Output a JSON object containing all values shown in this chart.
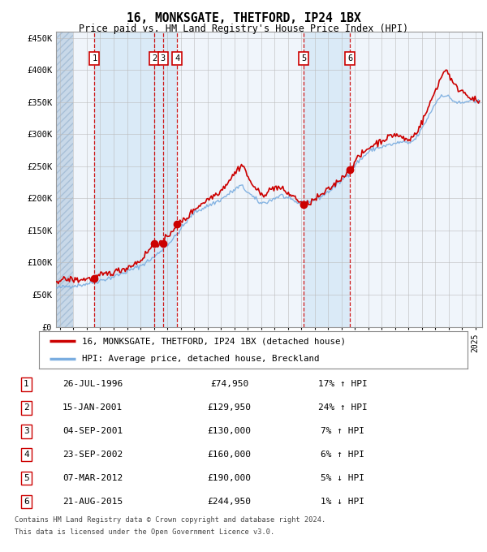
{
  "title": "16, MONKSGATE, THETFORD, IP24 1BX",
  "subtitle": "Price paid vs. HM Land Registry's House Price Index (HPI)",
  "ylabel_ticks": [
    "£0",
    "£50K",
    "£100K",
    "£150K",
    "£200K",
    "£250K",
    "£300K",
    "£350K",
    "£400K",
    "£450K"
  ],
  "ytick_vals": [
    0,
    50000,
    100000,
    150000,
    200000,
    250000,
    300000,
    350000,
    400000,
    450000
  ],
  "ylim": [
    0,
    460000
  ],
  "xlim_start": 1993.7,
  "xlim_end": 2025.5,
  "sales": [
    {
      "num": 1,
      "date_str": "26-JUL-1996",
      "date_x": 1996.57,
      "price": 74950,
      "pct": "17%",
      "dir": "↑"
    },
    {
      "num": 2,
      "date_str": "15-JAN-2001",
      "date_x": 2001.04,
      "price": 129950,
      "pct": "24%",
      "dir": "↑"
    },
    {
      "num": 3,
      "date_str": "04-SEP-2001",
      "date_x": 2001.67,
      "price": 130000,
      "pct": "7%",
      "dir": "↑"
    },
    {
      "num": 4,
      "date_str": "23-SEP-2002",
      "date_x": 2002.73,
      "price": 160000,
      "pct": "6%",
      "dir": "↑"
    },
    {
      "num": 5,
      "date_str": "07-MAR-2012",
      "date_x": 2012.18,
      "price": 190000,
      "pct": "5%",
      "dir": "↓"
    },
    {
      "num": 6,
      "date_str": "21-AUG-2015",
      "date_x": 2015.64,
      "price": 244950,
      "pct": "1%",
      "dir": "↓"
    }
  ],
  "legend_line1": "16, MONKSGATE, THETFORD, IP24 1BX (detached house)",
  "legend_line2": "HPI: Average price, detached house, Breckland",
  "footer1": "Contains HM Land Registry data © Crown copyright and database right 2024.",
  "footer2": "This data is licensed under the Open Government Licence v3.0.",
  "hpi_color": "#7aade0",
  "price_color": "#cc0000",
  "shade_color": "#daeaf7",
  "hatch_color": "#c8d8e8",
  "grid_color": "#bbbbbb",
  "bg_color": "#f0f5fb"
}
